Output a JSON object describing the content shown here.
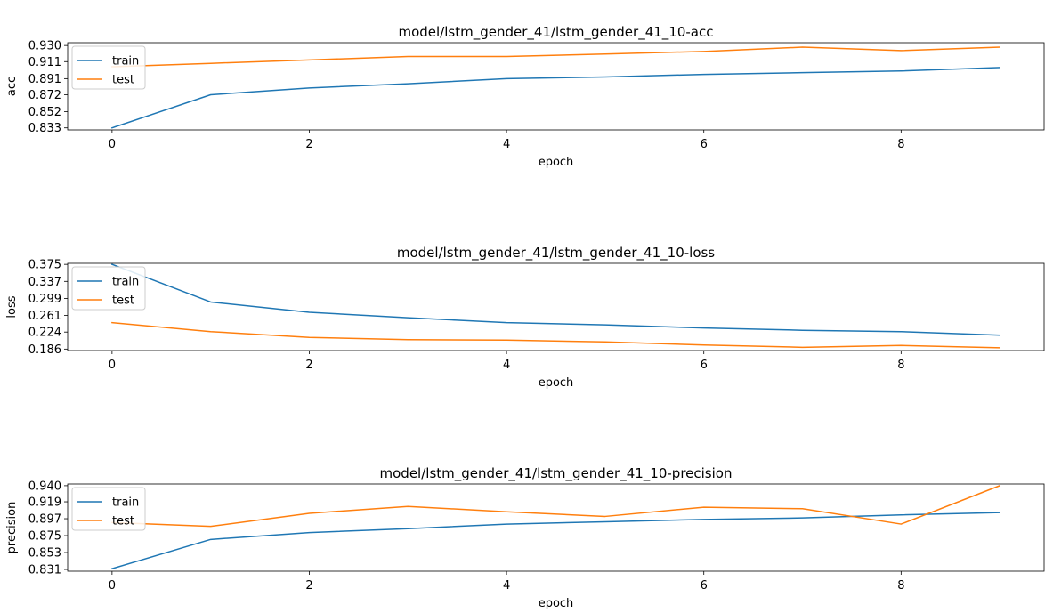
{
  "colors": {
    "train": "#1f77b4",
    "test": "#ff7f0e"
  },
  "chart_data": [
    {
      "type": "line",
      "title": "model/lstm_gender_41/lstm_gender_41_10-acc",
      "xlabel": "epoch",
      "ylabel": "acc",
      "x": [
        0,
        1,
        2,
        3,
        4,
        5,
        6,
        7,
        8,
        9
      ],
      "xticks": [
        0,
        2,
        4,
        6,
        8
      ],
      "xtick_labels": [
        "0",
        "2",
        "4",
        "6",
        "8"
      ],
      "xlim": [
        -0.45,
        9.45
      ],
      "ylim": [
        0.8306,
        0.9333
      ],
      "yticks": [
        0.833,
        0.852,
        0.872,
        0.891,
        0.911,
        0.93
      ],
      "ytick_labels": [
        "0.833",
        "0.852",
        "0.872",
        "0.891",
        "0.911",
        "0.930"
      ],
      "series": [
        {
          "name": "train",
          "values": [
            0.833,
            0.872,
            0.88,
            0.885,
            0.891,
            0.893,
            0.896,
            0.898,
            0.9,
            0.904
          ]
        },
        {
          "name": "test",
          "values": [
            0.905,
            0.909,
            0.913,
            0.917,
            0.917,
            0.92,
            0.923,
            0.928,
            0.924,
            0.928
          ]
        }
      ],
      "legend": {
        "entries": [
          "train",
          "test"
        ],
        "position": "upper-left"
      }
    },
    {
      "type": "line",
      "title": "model/lstm_gender_41/lstm_gender_41_10-loss",
      "xlabel": "epoch",
      "ylabel": "loss",
      "x": [
        0,
        1,
        2,
        3,
        4,
        5,
        6,
        7,
        8,
        9
      ],
      "xticks": [
        0,
        2,
        4,
        6,
        8
      ],
      "xtick_labels": [
        "0",
        "2",
        "4",
        "6",
        "8"
      ],
      "xlim": [
        -0.45,
        9.45
      ],
      "ylim": [
        0.1827,
        0.3773
      ],
      "yticks": [
        0.186,
        0.224,
        0.261,
        0.299,
        0.337,
        0.375
      ],
      "ytick_labels": [
        "0.186",
        "0.224",
        "0.261",
        "0.299",
        "0.337",
        "0.375"
      ],
      "series": [
        {
          "name": "train",
          "values": [
            0.375,
            0.291,
            0.268,
            0.256,
            0.245,
            0.24,
            0.233,
            0.228,
            0.225,
            0.217
          ]
        },
        {
          "name": "test",
          "values": [
            0.245,
            0.225,
            0.212,
            0.207,
            0.206,
            0.202,
            0.195,
            0.19,
            0.194,
            0.189
          ]
        }
      ],
      "legend": {
        "entries": [
          "train",
          "test"
        ],
        "position": "upper-left"
      }
    },
    {
      "type": "line",
      "title": "model/lstm_gender_41/lstm_gender_41_10-precision",
      "xlabel": "epoch",
      "ylabel": "precision",
      "x": [
        0,
        1,
        2,
        3,
        4,
        5,
        6,
        7,
        8,
        9
      ],
      "xticks": [
        0,
        2,
        4,
        6,
        8
      ],
      "xtick_labels": [
        "0",
        "2",
        "4",
        "6",
        "8"
      ],
      "xlim": [
        -0.45,
        9.45
      ],
      "ylim": [
        0.8287,
        0.9422
      ],
      "yticks": [
        0.831,
        0.853,
        0.875,
        0.897,
        0.919,
        0.94
      ],
      "ytick_labels": [
        "0.831",
        "0.853",
        "0.875",
        "0.897",
        "0.919",
        "0.940"
      ],
      "series": [
        {
          "name": "train",
          "values": [
            0.832,
            0.87,
            0.879,
            0.884,
            0.89,
            0.893,
            0.896,
            0.898,
            0.902,
            0.905
          ]
        },
        {
          "name": "test",
          "values": [
            0.892,
            0.887,
            0.904,
            0.913,
            0.906,
            0.9,
            0.912,
            0.91,
            0.89,
            0.94
          ]
        }
      ],
      "legend": {
        "entries": [
          "train",
          "test"
        ],
        "position": "upper-left"
      }
    }
  ]
}
